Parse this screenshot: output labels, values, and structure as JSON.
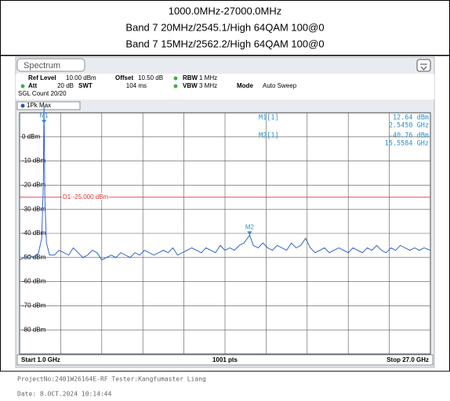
{
  "header": {
    "lines": [
      "1000.0MHz-27000.0MHz",
      "Band 7 20MHz/2545.1/High 64QAM 100@0",
      "Band 7 15MHz/2562.2/High 64QAM 100@0"
    ]
  },
  "instrument": {
    "tab": "Spectrum",
    "settings": [
      [
        "Ref Level",
        "10.00 dBm",
        "Offset",
        "10.50 dB",
        "RBW",
        "1 MHz"
      ],
      [
        "Att",
        "20 dB",
        "SWT",
        "104 ms",
        "VBW",
        "3 MHz",
        "Mode",
        "Auto Sweep"
      ]
    ],
    "count": "SGL Count 20/20",
    "trace_label": "1Pk Max",
    "start": "Start 1.0 GHz",
    "points": "1001 pts",
    "stop": "Stop 27.0 GHz"
  },
  "chart_data": {
    "type": "line",
    "xlim": [
      1,
      27
    ],
    "xticks": [
      1,
      3.6,
      6.2,
      8.8,
      11.4,
      14,
      16.6,
      19.2,
      21.8,
      24.4,
      27
    ],
    "ylim": [
      -90,
      10
    ],
    "yticks": [
      {
        "value": 0,
        "label": "0 dBm"
      },
      {
        "value": -10,
        "label": "-10 dBm"
      },
      {
        "value": -20,
        "label": "-20 dBm"
      },
      {
        "value": -30,
        "label": "-30 dBm"
      },
      {
        "value": -40,
        "label": "-40 dBm"
      },
      {
        "value": -50,
        "label": "-50 dBm"
      },
      {
        "value": -60,
        "label": "-60 dBm"
      },
      {
        "value": -70,
        "label": "-70 dBm"
      },
      {
        "value": -80,
        "label": "-80 dBm"
      }
    ],
    "grid": true,
    "series": [
      {
        "name": "1Pk Max",
        "color": "#2255c4",
        "x": [
          1.0,
          1.3,
          1.6,
          1.9,
          2.2,
          2.4,
          2.5,
          2.545,
          2.6,
          2.7,
          2.9,
          3.2,
          3.5,
          3.8,
          4.1,
          4.4,
          4.7,
          5.0,
          5.3,
          5.6,
          5.9,
          6.2,
          6.5,
          6.8,
          7.1,
          7.4,
          7.7,
          8.0,
          8.3,
          8.6,
          8.9,
          9.2,
          9.5,
          9.8,
          10.1,
          10.4,
          10.7,
          11.0,
          11.3,
          11.6,
          11.9,
          12.2,
          12.5,
          12.8,
          13.1,
          13.4,
          13.7,
          14.0,
          14.3,
          14.6,
          14.9,
          15.2,
          15.5584,
          15.8,
          16.1,
          16.4,
          16.7,
          17.0,
          17.3,
          17.6,
          17.9,
          18.2,
          18.5,
          18.8,
          19.1,
          19.4,
          19.7,
          20.0,
          20.3,
          20.6,
          20.9,
          21.2,
          21.5,
          21.8,
          22.1,
          22.4,
          22.7,
          23.0,
          23.3,
          23.6,
          23.9,
          24.2,
          24.5,
          24.8,
          25.1,
          25.4,
          25.7,
          26.0,
          26.3,
          26.6,
          27.0
        ],
        "values": [
          -51,
          -50,
          -49,
          -50,
          -48,
          -42,
          -20,
          12.64,
          -26,
          -44,
          -49,
          -49,
          -47,
          -48,
          -49,
          -46,
          -48,
          -50,
          -49,
          -47,
          -48,
          -51,
          -50,
          -49,
          -50,
          -48,
          -49,
          -50,
          -48,
          -49,
          -47,
          -48,
          -49,
          -48,
          -47,
          -48,
          -46,
          -49,
          -48,
          -47,
          -46,
          -47,
          -48,
          -46,
          -47,
          -48,
          -45,
          -47,
          -46,
          -47,
          -45,
          -44,
          -40.76,
          -45,
          -46,
          -44,
          -46,
          -47,
          -45,
          -46,
          -47,
          -44,
          -46,
          -45,
          -42,
          -46,
          -48,
          -47,
          -46,
          -48,
          -47,
          -46,
          -47,
          -48,
          -46,
          -47,
          -48,
          -46,
          -47,
          -45,
          -47,
          -48,
          -46,
          -47,
          -45,
          -46,
          -47,
          -46,
          -47,
          -46,
          -47
        ]
      }
    ],
    "display_line": {
      "label": "D1 -25.000 dBm",
      "value": -25,
      "color": "#e03030"
    },
    "markers": [
      {
        "name": "M1",
        "readout": "M1[1]",
        "x": 2.545,
        "y": 12.64,
        "y_label": "12.64 dBm",
        "x_label": "2.5450 GHz"
      },
      {
        "name": "M2",
        "readout": "M2[1]",
        "x": 15.5584,
        "y": -40.76,
        "y_label": "-40.76 dBm",
        "x_label": "15.5584 GHz"
      }
    ]
  },
  "footer": {
    "lines": [
      "ProjectNo:2401W26164E-RF Tester:Kangfumaster Liang",
      "Date: 8.OCT.2024  10:14:44"
    ]
  }
}
